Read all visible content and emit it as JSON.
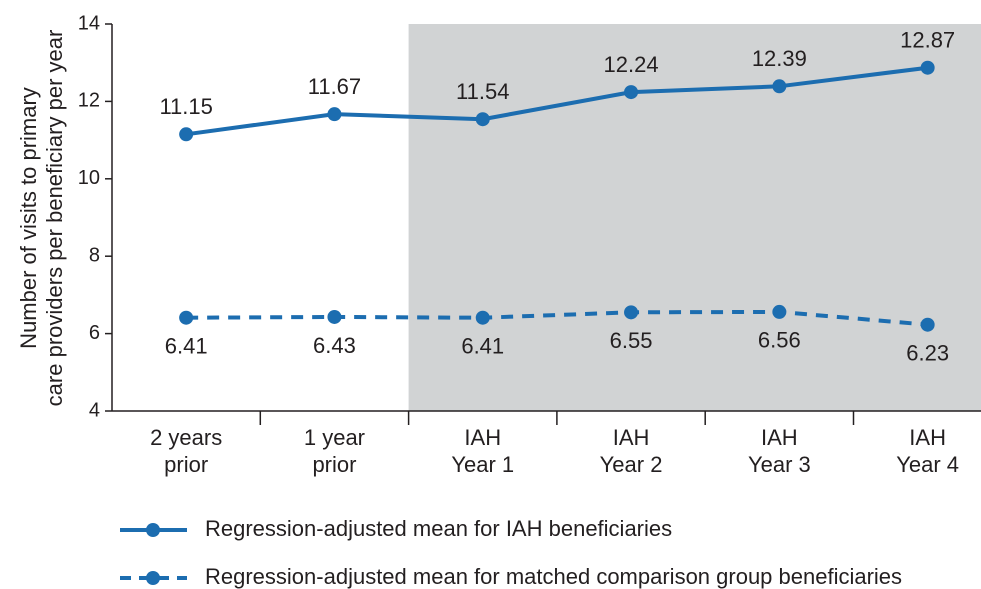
{
  "chart_data": {
    "type": "line",
    "y_label": [
      "Number of visits to primary",
      "care providers per beneficiary per year"
    ],
    "categories": [
      [
        "2 years",
        "prior"
      ],
      [
        "1 year",
        "prior"
      ],
      [
        "IAH",
        "Year 1"
      ],
      [
        "IAH",
        "Year 2"
      ],
      [
        "IAH",
        "Year 3"
      ],
      [
        "IAH",
        "Year 4"
      ]
    ],
    "series": [
      {
        "name": "Regression-adjusted mean for IAH beneficiaries",
        "color": "#1c6db0",
        "line_style": "solid",
        "label_position": "above",
        "values": [
          11.15,
          11.67,
          11.54,
          12.24,
          12.39,
          12.87
        ]
      },
      {
        "name": "Regression-adjusted mean for matched comparison group beneficiaries",
        "color": "#1c6db0",
        "line_style": "dashed",
        "label_position": "below",
        "values": [
          6.41,
          6.43,
          6.41,
          6.55,
          6.56,
          6.23
        ]
      }
    ],
    "shaded_from_category": 2,
    "shade_color": "#d1d3d4",
    "ylim": [
      4,
      14
    ],
    "yticks": [
      4,
      6,
      8,
      10,
      12,
      14
    ],
    "grid": false,
    "legend": "bottom"
  }
}
